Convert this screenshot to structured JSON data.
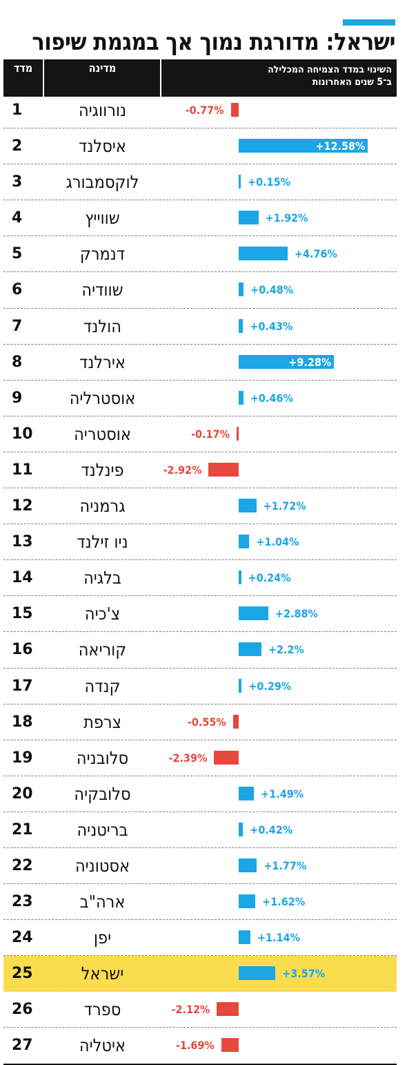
{
  "title": "ישראל: מדורגת נמוך אך במגמת שיפור",
  "colors": {
    "accent": "#1ba6e6",
    "positive": "#1ba6e6",
    "negative": "#e8473d",
    "highlight": "#fbdc4e",
    "header": "#141414"
  },
  "chart_data": {
    "type": "bar",
    "orientation": "horizontal",
    "column_headers": {
      "rank": "מדד",
      "country": "מדינה",
      "change_line1": "השינוי במדד הצמיחה המכלילה",
      "change_line2": "ב־5 שנים האחרונות"
    },
    "highlight_country": "ישראל",
    "rows": [
      {
        "rank": "1",
        "country": "נורווגיה",
        "value": -0.77,
        "label": "-0.77%"
      },
      {
        "rank": "2",
        "country": "איסלנד",
        "value": 12.58,
        "label": "+12.58%"
      },
      {
        "rank": "3",
        "country": "לוקסמבורג",
        "value": 0.15,
        "label": "+0.15%"
      },
      {
        "rank": "4",
        "country": "שווייץ",
        "value": 1.92,
        "label": "+1.92%"
      },
      {
        "rank": "5",
        "country": "דנמרק",
        "value": 4.76,
        "label": "+4.76%"
      },
      {
        "rank": "6",
        "country": "שוודיה",
        "value": 0.48,
        "label": "+0.48%"
      },
      {
        "rank": "7",
        "country": "הולנד",
        "value": 0.43,
        "label": "+0.43%"
      },
      {
        "rank": "8",
        "country": "אירלנד",
        "value": 9.28,
        "label": "+9.28%"
      },
      {
        "rank": "9",
        "country": "אוסטרליה",
        "value": 0.46,
        "label": "+0.46%"
      },
      {
        "rank": "10",
        "country": "אוסטריה",
        "value": -0.17,
        "label": "-0.17%"
      },
      {
        "rank": "11",
        "country": "פינלנד",
        "value": -2.92,
        "label": "-2.92%"
      },
      {
        "rank": "12",
        "country": "גרמניה",
        "value": 1.72,
        "label": "+1.72%"
      },
      {
        "rank": "13",
        "country": "ניו זילנד",
        "value": 1.04,
        "label": "+1.04%"
      },
      {
        "rank": "14",
        "country": "בלגיה",
        "value": 0.24,
        "label": "+0.24%"
      },
      {
        "rank": "15",
        "country": "צ'כיה",
        "value": 2.88,
        "label": "+2.88%"
      },
      {
        "rank": "16",
        "country": "קוריאה",
        "value": 2.2,
        "label": "+2.2%"
      },
      {
        "rank": "17",
        "country": "קנדה",
        "value": 0.29,
        "label": "+0.29%"
      },
      {
        "rank": "18",
        "country": "צרפת",
        "value": -0.55,
        "label": "-0.55%"
      },
      {
        "rank": "19",
        "country": "סלובניה",
        "value": -2.39,
        "label": "-2.39%"
      },
      {
        "rank": "20",
        "country": "סלובקיה",
        "value": 1.49,
        "label": "+1.49%"
      },
      {
        "rank": "21",
        "country": "בריטניה",
        "value": 0.42,
        "label": "+0.42%"
      },
      {
        "rank": "22",
        "country": "אסטוניה",
        "value": 1.77,
        "label": "+1.77%"
      },
      {
        "rank": "23",
        "country": "ארה\"ב",
        "value": 1.62,
        "label": "+1.62%"
      },
      {
        "rank": "24",
        "country": "יפן",
        "value": 1.14,
        "label": "+1.14%"
      },
      {
        "rank": "25",
        "country": "ישראל",
        "value": 3.57,
        "label": "+3.57%"
      },
      {
        "rank": "26",
        "country": "ספרד",
        "value": -2.12,
        "label": "-2.12%"
      },
      {
        "rank": "27",
        "country": "איטליה",
        "value": -1.69,
        "label": "-1.69%"
      }
    ]
  }
}
